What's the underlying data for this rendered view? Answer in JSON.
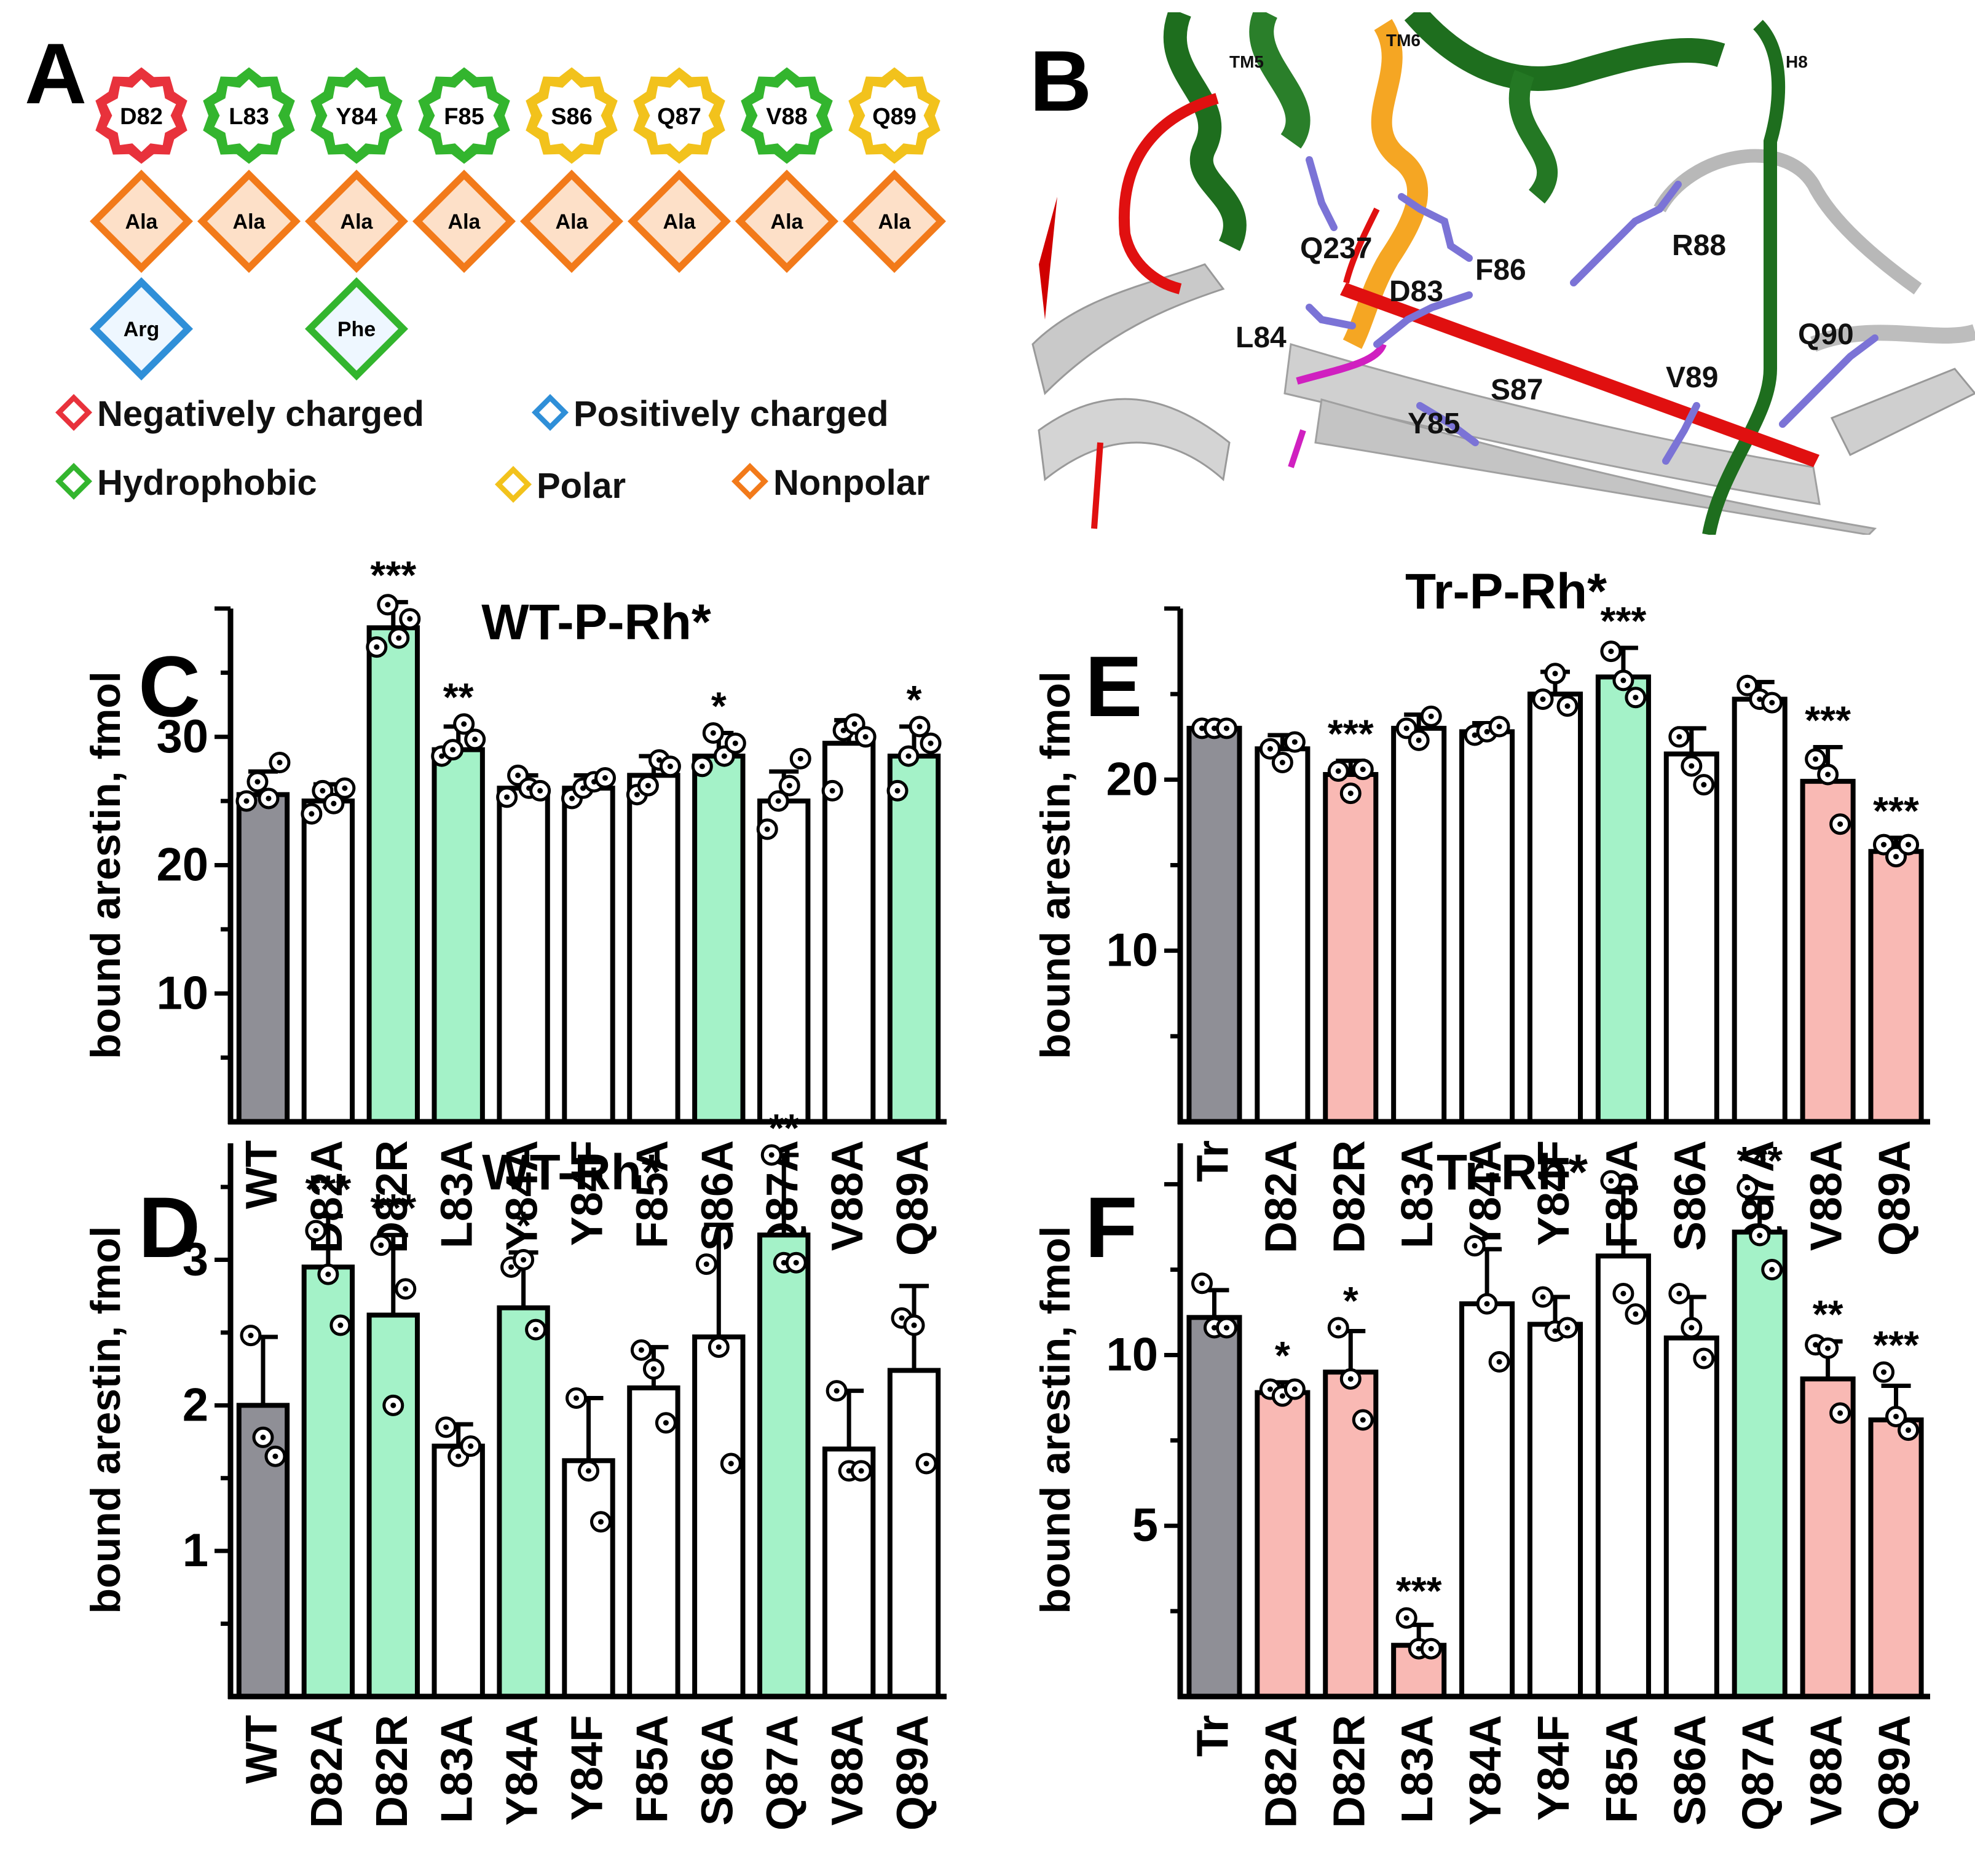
{
  "panelA": {
    "label": "A",
    "residues": [
      "D82",
      "L83",
      "Y84",
      "F85",
      "S86",
      "Q87",
      "V88",
      "Q89"
    ],
    "residue_types": [
      "negative",
      "hydrophobic",
      "hydrophobic",
      "hydrophobic",
      "polar",
      "polar",
      "hydrophobic",
      "polar"
    ],
    "ala_row": [
      "Ala",
      "Ala",
      "Ala",
      "Ala",
      "Ala",
      "Ala",
      "Ala",
      "Ala"
    ],
    "extra": [
      {
        "label": "Arg",
        "column": 0,
        "type": "positive"
      },
      {
        "label": "Phe",
        "column": 2,
        "type": "hydrophobic"
      }
    ],
    "legend": [
      {
        "label": "Negatively charged",
        "type": "negative"
      },
      {
        "label": "Positively charged",
        "type": "positive"
      },
      {
        "label": "Hydrophobic",
        "type": "hydrophobic"
      },
      {
        "label": "Polar",
        "type": "polar"
      },
      {
        "label": "Nonpolar",
        "type": "nonpolar"
      }
    ],
    "type_colors": {
      "negative": "#e8323c",
      "positive": "#2f8fd8",
      "hydrophobic": "#33b52e",
      "polar": "#f2c21c",
      "nonpolar": "#f27a1a"
    }
  },
  "panelB": {
    "label": "B",
    "labels": [
      "TM5",
      "TM6",
      "H8",
      "Q237",
      "D83",
      "F86",
      "R88",
      "L84",
      "Y85",
      "S87",
      "V89",
      "Q90"
    ]
  },
  "chart_data": [
    {
      "panel": "C",
      "type": "bar",
      "title": "WT-P-Rh*",
      "ylabel": "bound arestin, fmol",
      "ylim": [
        0,
        40
      ],
      "yticks": [
        10,
        20,
        30
      ],
      "categories": [
        "WT",
        "D82A",
        "D82R",
        "L83A",
        "Y84A",
        "Y84F",
        "F85A",
        "S86A",
        "Q87A",
        "V88A",
        "Q89A"
      ],
      "values": [
        25.5,
        25,
        38.5,
        29,
        26,
        26,
        27,
        28.5,
        25,
        29.5,
        28.5
      ],
      "errors": [
        1.8,
        1.3,
        2,
        1.8,
        1,
        1,
        1.5,
        1.8,
        2.3,
        1.8,
        2.3
      ],
      "points": [
        [
          25,
          26.5,
          25.2,
          28
        ],
        [
          24,
          25.8,
          24.8,
          26
        ],
        [
          37,
          40.3,
          37.7,
          39.2
        ],
        [
          28.5,
          29,
          31,
          29.8
        ],
        [
          25.3,
          27,
          26,
          25.8
        ],
        [
          25.2,
          26,
          26.5,
          26.8
        ],
        [
          25.5,
          26.2,
          28.2,
          27.7
        ],
        [
          27.7,
          30.3,
          28.5,
          29.5
        ],
        [
          22.8,
          25,
          26.2,
          28.3
        ],
        [
          25.8,
          30.5,
          31,
          30
        ],
        [
          25.8,
          28.5,
          30.8,
          29.5
        ]
      ],
      "significance": [
        "",
        "",
        "***",
        "**",
        "",
        "",
        "",
        "*",
        "",
        "",
        "*"
      ],
      "colors": [
        "gray",
        "white",
        "green",
        "green",
        "white",
        "white",
        "white",
        "green",
        "white",
        "white",
        "green"
      ]
    },
    {
      "panel": "D",
      "type": "bar",
      "title": "WT-Rh*",
      "ylabel": "bound arestin, fmol",
      "ylim": [
        0,
        3.8
      ],
      "yticks": [
        1,
        2,
        3
      ],
      "categories": [
        "WT",
        "D82A",
        "D82R",
        "L83A",
        "Y84A",
        "Y84F",
        "F85A",
        "S86A",
        "Q87A",
        "V88A",
        "Q89A"
      ],
      "values": [
        2.0,
        2.95,
        2.62,
        1.72,
        2.67,
        1.62,
        2.12,
        2.47,
        3.17,
        1.7,
        2.24
      ],
      "errors": [
        0.47,
        0.35,
        0.55,
        0.15,
        0.38,
        0.43,
        0.28,
        0.77,
        0.55,
        0.4,
        0.58
      ],
      "points": [
        [
          2.48,
          1.78,
          1.65
        ],
        [
          3.2,
          2.9,
          2.55
        ],
        [
          3.1,
          2.0,
          2.8
        ],
        [
          1.85,
          1.65,
          1.72
        ],
        [
          2.95,
          3.0,
          2.52
        ],
        [
          2.05,
          1.55,
          1.2
        ],
        [
          2.38,
          2.25,
          1.88
        ],
        [
          2.97,
          2.4,
          1.6
        ],
        [
          3.72,
          2.98,
          2.98
        ],
        [
          2.1,
          1.55,
          1.55
        ],
        [
          2.6,
          2.55,
          1.6
        ]
      ],
      "significance": [
        "",
        "***",
        "***",
        "",
        "*",
        "",
        "",
        "",
        "**",
        "",
        ""
      ],
      "colors": [
        "gray",
        "green",
        "green",
        "white",
        "green",
        "white",
        "white",
        "white",
        "green",
        "white",
        "white"
      ]
    },
    {
      "panel": "E",
      "type": "bar",
      "title": "Tr-P-Rh*",
      "ylabel": "bound arestin, fmol",
      "ylim": [
        0,
        30
      ],
      "yticks": [
        10,
        20
      ],
      "categories": [
        "Tr",
        "D82A",
        "D82R",
        "L83A",
        "Y84A",
        "Y84F",
        "F85A",
        "S86A",
        "Q87A",
        "V88A",
        "Q89A"
      ],
      "values": [
        23,
        21.8,
        20.3,
        23,
        22.8,
        25,
        26,
        21.5,
        24.7,
        19.9,
        15.8
      ],
      "errors": [
        0.3,
        0.8,
        0.8,
        0.8,
        0.5,
        1.3,
        1.7,
        1.5,
        1,
        2,
        0.8
      ],
      "points": [
        [
          23,
          23,
          23
        ],
        [
          21.8,
          21,
          22.2
        ],
        [
          20.5,
          19.2,
          20.6
        ],
        [
          23,
          22.3,
          23.7
        ],
        [
          22.6,
          22.8,
          23.1
        ],
        [
          24.7,
          26.2,
          24.3
        ],
        [
          27.5,
          25.8,
          24.8
        ],
        [
          22.5,
          20.8,
          19.7
        ],
        [
          25.5,
          24.7,
          24.5
        ],
        [
          21.2,
          20.3,
          17.4
        ],
        [
          16.2,
          15.5,
          16.2
        ]
      ],
      "significance": [
        "",
        "",
        "***",
        "",
        "",
        "",
        "***",
        "",
        "",
        "***",
        "***"
      ],
      "colors": [
        "gray",
        "white",
        "pink",
        "white",
        "white",
        "white",
        "green",
        "white",
        "white",
        "pink",
        "pink"
      ]
    },
    {
      "panel": "F",
      "type": "bar",
      "title": "Tr-Rh*",
      "ylabel": "bound arestin, fmol",
      "ylim": [
        0,
        16.2
      ],
      "yticks": [
        5,
        10
      ],
      "categories": [
        "Tr",
        "D82A",
        "D82R",
        "L83A",
        "Y84A",
        "Y84F",
        "F85A",
        "S86A",
        "Q87A",
        "V88A",
        "Q89A"
      ],
      "values": [
        11.1,
        8.9,
        9.5,
        1.5,
        11.5,
        10.9,
        12.9,
        10.5,
        13.6,
        9.3,
        8.1
      ],
      "errors": [
        0.8,
        0.3,
        1.2,
        0.6,
        1.6,
        0.8,
        2,
        1.2,
        1,
        1.1,
        1
      ],
      "points": [
        [
          12.1,
          10.8,
          10.8
        ],
        [
          9,
          8.8,
          9
        ],
        [
          10.8,
          9.3,
          8.1
        ],
        [
          2.3,
          1.4,
          1.4
        ],
        [
          13.2,
          11.5,
          9.8
        ],
        [
          11.7,
          10.7,
          10.8
        ],
        [
          15.1,
          11.8,
          11.2
        ],
        [
          11.8,
          10.8,
          9.9
        ],
        [
          14.9,
          13.5,
          12.5
        ],
        [
          10.3,
          10.2,
          8.3
        ],
        [
          9.5,
          8.2,
          7.8
        ]
      ],
      "significance": [
        "",
        "*",
        "*",
        "***",
        "",
        "",
        "",
        "",
        "***",
        "**",
        "***"
      ],
      "colors": [
        "gray",
        "pink",
        "pink",
        "pink",
        "white",
        "white",
        "white",
        "white",
        "green",
        "pink",
        "pink"
      ]
    }
  ],
  "bar_colors": {
    "gray": "#8f8f96",
    "green": "#a4f2c8",
    "pink": "#f9b9b4",
    "white": "#ffffff"
  }
}
